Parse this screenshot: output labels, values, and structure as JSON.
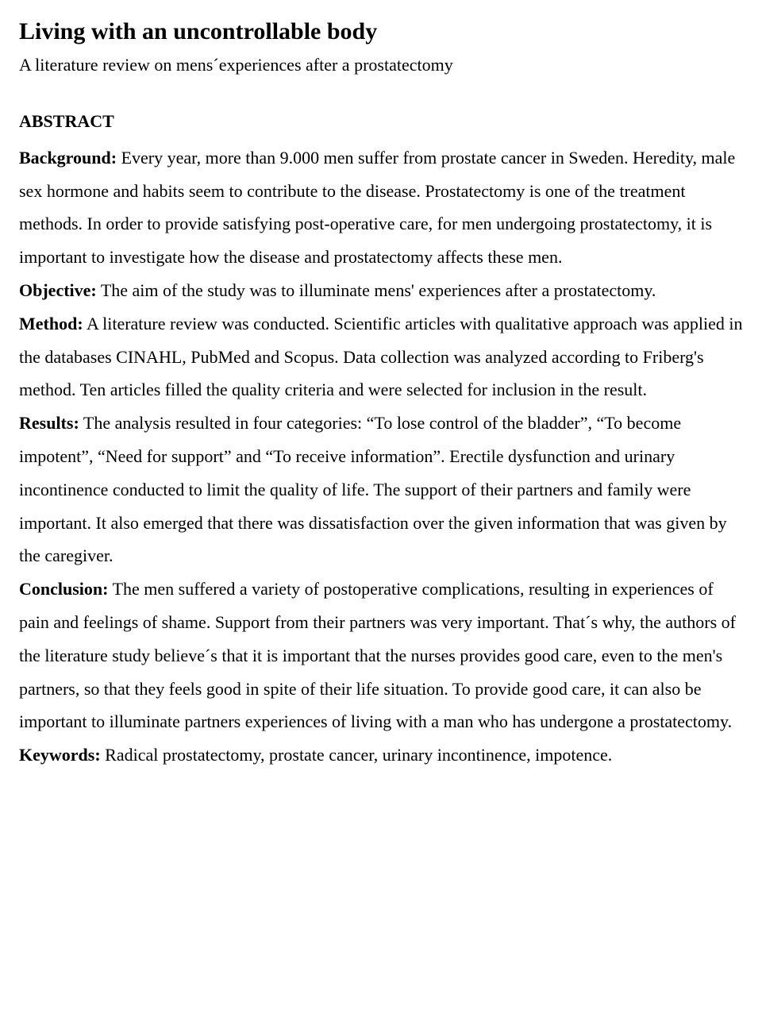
{
  "title": "Living with an uncontrollable body",
  "subtitle": "A literature review on mens´experiences after a prostatectomy",
  "abstract_heading": "ABSTRACT",
  "sections": {
    "background": {
      "label": "Background:",
      "text": " Every year, more than 9.000 men suffer from prostate cancer in Sweden. Heredity, male sex hormone and habits seem to contribute to the disease. Prostatectomy is one of the treatment methods. In order to provide satisfying post-operative care, for men undergoing prostatectomy, it is important to investigate how the disease and prostatectomy affects these men."
    },
    "objective": {
      "label": "Objective:",
      "text": " The aim of the study was to illuminate mens' experiences after a prostatectomy."
    },
    "method": {
      "label": "Method:",
      "text": " A literature review was conducted. Scientific articles with qualitative approach was applied in the databases CINAHL, PubMed and Scopus. Data collection was analyzed according to Friberg's method. Ten articles filled the quality criteria and were selected for inclusion in the result."
    },
    "results": {
      "label": "Results:",
      "text": " The analysis resulted in four categories: “To lose control of the bladder”, “To become impotent”, “Need for support” and “To receive information”. Erectile dysfunction and urinary incontinence conducted to limit the quality of life. The support of their partners and family were important. It also emerged that there was dissatisfaction over the given information that was given by the caregiver."
    },
    "conclusion": {
      "label": "Conclusion:",
      "text": " The men suffered a variety of postoperative complications, resulting in experiences of pain and feelings of shame. Support from their partners was very important. That´s why, the authors of the literature study believe´s that it is important that the nurses provides good care, even to the men's partners, so that they feels good in spite of their life situation. To provide good care, it can also be important to illuminate partners experiences of living with a man who has undergone a prostatectomy."
    },
    "keywords": {
      "label": "Keywords:",
      "text": " Radical prostatectomy, prostate cancer, urinary incontinence, impotence."
    }
  },
  "style": {
    "background_color": "#ffffff",
    "text_color": "#000000",
    "title_fontsize": 30,
    "body_fontsize": 22,
    "line_height": 1.9,
    "font_family": "Georgia, serif"
  }
}
